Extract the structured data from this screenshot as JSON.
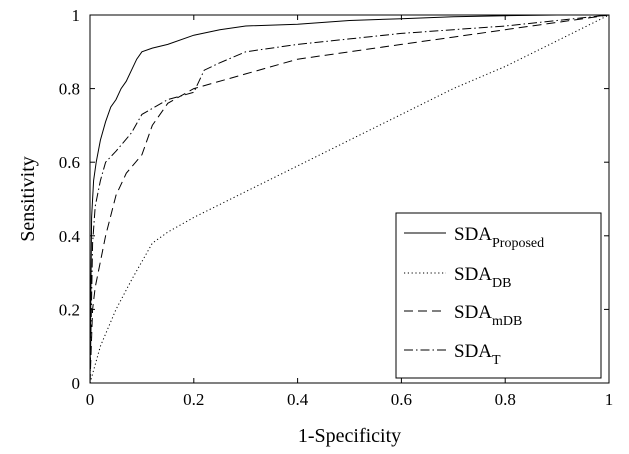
{
  "chart_data": {
    "type": "line",
    "xlabel": "1-Specificity",
    "ylabel": "Sensitivity",
    "xlim": [
      0,
      1
    ],
    "ylim": [
      0,
      1
    ],
    "x_ticks": [
      "0",
      "0.2",
      "0.4",
      "0.6",
      "0.8",
      "1"
    ],
    "y_ticks": [
      "0",
      "0.2",
      "0.4",
      "0.6",
      "0.8",
      "1"
    ],
    "grid": false,
    "legend_position": "bottom-right",
    "series": [
      {
        "name": "SDA",
        "subscript": "Proposed",
        "style": "solid",
        "x": [
          0,
          0.003,
          0.007,
          0.012,
          0.02,
          0.03,
          0.04,
          0.05,
          0.06,
          0.07,
          0.08,
          0.09,
          0.1,
          0.12,
          0.15,
          0.2,
          0.25,
          0.3,
          0.4,
          0.5,
          0.6,
          0.7,
          0.8,
          0.9,
          1.0
        ],
        "y": [
          0,
          0.45,
          0.55,
          0.6,
          0.66,
          0.71,
          0.75,
          0.77,
          0.8,
          0.82,
          0.85,
          0.88,
          0.9,
          0.91,
          0.92,
          0.945,
          0.96,
          0.97,
          0.975,
          0.985,
          0.99,
          0.995,
          0.998,
          1.0,
          1.0
        ]
      },
      {
        "name": "SDA",
        "subscript": "DB",
        "style": "dotted",
        "x": [
          0,
          0.02,
          0.05,
          0.08,
          0.1,
          0.12,
          0.15,
          0.2,
          0.3,
          0.4,
          0.5,
          0.6,
          0.7,
          0.8,
          0.9,
          1.0
        ],
        "y": [
          0,
          0.1,
          0.2,
          0.28,
          0.33,
          0.38,
          0.41,
          0.45,
          0.52,
          0.59,
          0.66,
          0.73,
          0.8,
          0.86,
          0.93,
          1.0
        ]
      },
      {
        "name": "SDA",
        "subscript": "mDB",
        "style": "dashed",
        "x": [
          0,
          0.005,
          0.01,
          0.02,
          0.03,
          0.05,
          0.07,
          0.1,
          0.12,
          0.15,
          0.2,
          0.3,
          0.4,
          0.5,
          0.6,
          0.7,
          0.8,
          0.9,
          1.0
        ],
        "y": [
          0,
          0.2,
          0.26,
          0.33,
          0.4,
          0.51,
          0.57,
          0.62,
          0.7,
          0.76,
          0.8,
          0.84,
          0.88,
          0.9,
          0.92,
          0.94,
          0.96,
          0.98,
          1.0
        ]
      },
      {
        "name": "SDA",
        "subscript": "T",
        "style": "dashdot",
        "x": [
          0,
          0.005,
          0.01,
          0.02,
          0.03,
          0.05,
          0.08,
          0.1,
          0.15,
          0.2,
          0.22,
          0.25,
          0.3,
          0.4,
          0.5,
          0.6,
          0.7,
          0.8,
          0.9,
          1.0
        ],
        "y": [
          0,
          0.38,
          0.48,
          0.55,
          0.6,
          0.63,
          0.68,
          0.73,
          0.77,
          0.79,
          0.85,
          0.87,
          0.9,
          0.92,
          0.935,
          0.95,
          0.96,
          0.97,
          0.985,
          1.0
        ]
      }
    ]
  }
}
